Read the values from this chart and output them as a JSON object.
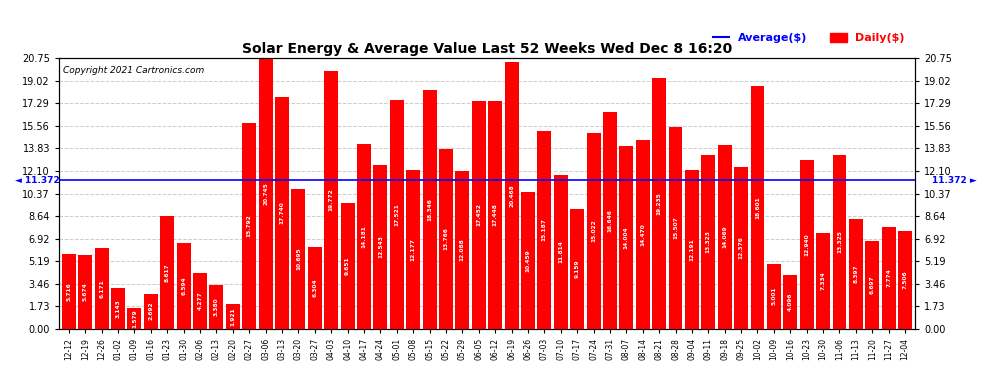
{
  "title": "Solar Energy & Average Value Last 52 Weeks Wed Dec 8 16:20",
  "copyright": "Copyright 2021 Cartronics.com",
  "average_label": "Average($)",
  "daily_label": "Daily($)",
  "average_value": 11.372,
  "bar_color": "#ff0000",
  "average_line_color": "#0000ff",
  "background_color": "#ffffff",
  "grid_color": "#cccccc",
  "ylim": [
    0.0,
    20.75
  ],
  "yticks": [
    0.0,
    1.73,
    3.46,
    5.19,
    6.92,
    8.64,
    10.37,
    12.1,
    13.83,
    15.56,
    17.29,
    19.02,
    20.75
  ],
  "dates": [
    "12-12",
    "12-19",
    "12-26",
    "01-02",
    "01-09",
    "01-16",
    "01-23",
    "01-30",
    "02-06",
    "02-13",
    "02-20",
    "02-27",
    "03-06",
    "03-13",
    "03-20",
    "03-27",
    "04-03",
    "04-10",
    "04-17",
    "04-24",
    "05-01",
    "05-08",
    "05-15",
    "05-22",
    "05-29",
    "06-05",
    "06-12",
    "06-19",
    "06-26",
    "07-03",
    "07-10",
    "07-17",
    "07-24",
    "07-31",
    "08-07",
    "08-14",
    "08-21",
    "08-28",
    "09-04",
    "09-11",
    "09-18",
    "09-25",
    "10-02",
    "10-09",
    "10-16",
    "10-23",
    "10-30",
    "11-06",
    "11-13",
    "11-20",
    "11-27",
    "12-04"
  ],
  "values": [
    5.716,
    5.674,
    6.171,
    3.143,
    1.579,
    2.692,
    8.617,
    6.594,
    4.277,
    3.38,
    1.921,
    15.792,
    20.745,
    17.74,
    10.695,
    6.304,
    19.772,
    9.651,
    14.181,
    12.543,
    17.521,
    12.177,
    18.346,
    13.766,
    12.088,
    17.452,
    17.448,
    20.468,
    10.459,
    15.187,
    11.814,
    9.159,
    15.022,
    16.646,
    14.004,
    14.47,
    19.235,
    15.507,
    12.191,
    13.323,
    14.069,
    12.376,
    18.601,
    5.001,
    4.096,
    12.94,
    7.334,
    13.325,
    8.397,
    6.697,
    7.774,
    7.506
  ],
  "value_labels": [
    "5.716",
    "5.674",
    "6.171",
    "3.143",
    "1.579",
    "2.692",
    "8.617",
    "6.594",
    "4.277",
    "3.380",
    "1.921",
    "15.792",
    "20.745",
    "17.740",
    "10.695",
    "6.304",
    "19.772",
    "9.651",
    "14.181",
    "12.543",
    "17.521",
    "12.177",
    "18.346",
    "13.766",
    "12.088",
    "17.452",
    "17.448",
    "20.468",
    "10.459",
    "15.187",
    "11.814",
    "9.159",
    "15.022",
    "16.646",
    "14.004",
    "14.470",
    "19.235",
    "15.507",
    "12.191",
    "13.323",
    "14.069",
    "12.376",
    "18.601",
    "5.001",
    "4.096",
    "12.940",
    "7.334",
    "13.325",
    "8.397",
    "6.697",
    "7.774",
    "7.506"
  ]
}
